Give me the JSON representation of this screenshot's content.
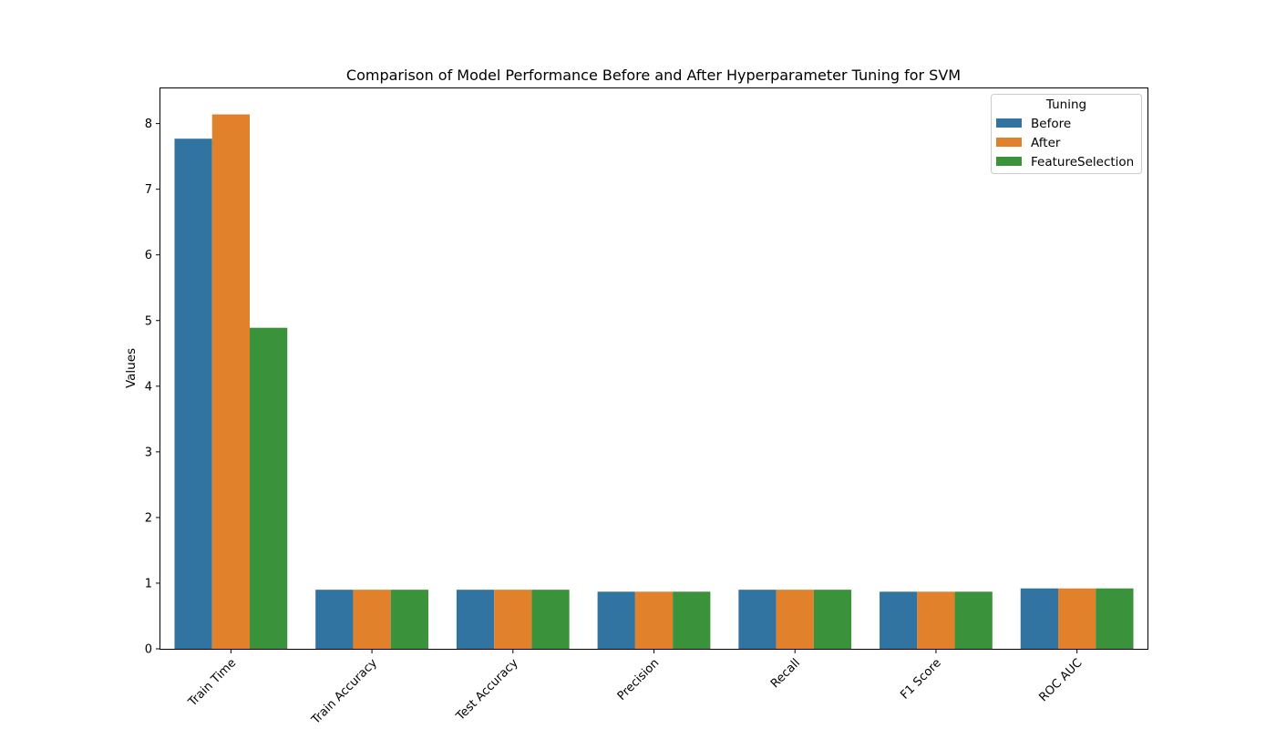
{
  "chart_data": {
    "type": "bar",
    "title": "Comparison of Model Performance Before and After Hyperparameter Tuning for SVM",
    "xlabel": "",
    "ylabel": "Values",
    "categories": [
      "Train Time",
      "Train Accuracy",
      "Test Accuracy",
      "Precision",
      "Recall",
      "F1 Score",
      "ROC AUC"
    ],
    "series": [
      {
        "name": "Before",
        "color": "#3274a1",
        "values": [
          7.77,
          0.9,
          0.9,
          0.87,
          0.9,
          0.87,
          0.92
        ]
      },
      {
        "name": "After",
        "color": "#e1812c",
        "values": [
          8.14,
          0.9,
          0.9,
          0.87,
          0.9,
          0.87,
          0.92
        ]
      },
      {
        "name": "FeatureSelection",
        "color": "#3a923a",
        "values": [
          4.89,
          0.9,
          0.9,
          0.87,
          0.9,
          0.87,
          0.92
        ]
      }
    ],
    "ylim": [
      0,
      8.55
    ],
    "yticks": [
      0,
      1,
      2,
      3,
      4,
      5,
      6,
      7,
      8
    ],
    "grid": false,
    "legend": {
      "title": "Tuning",
      "placement": "top-right"
    },
    "xtick_rotation": "45 degrees"
  }
}
